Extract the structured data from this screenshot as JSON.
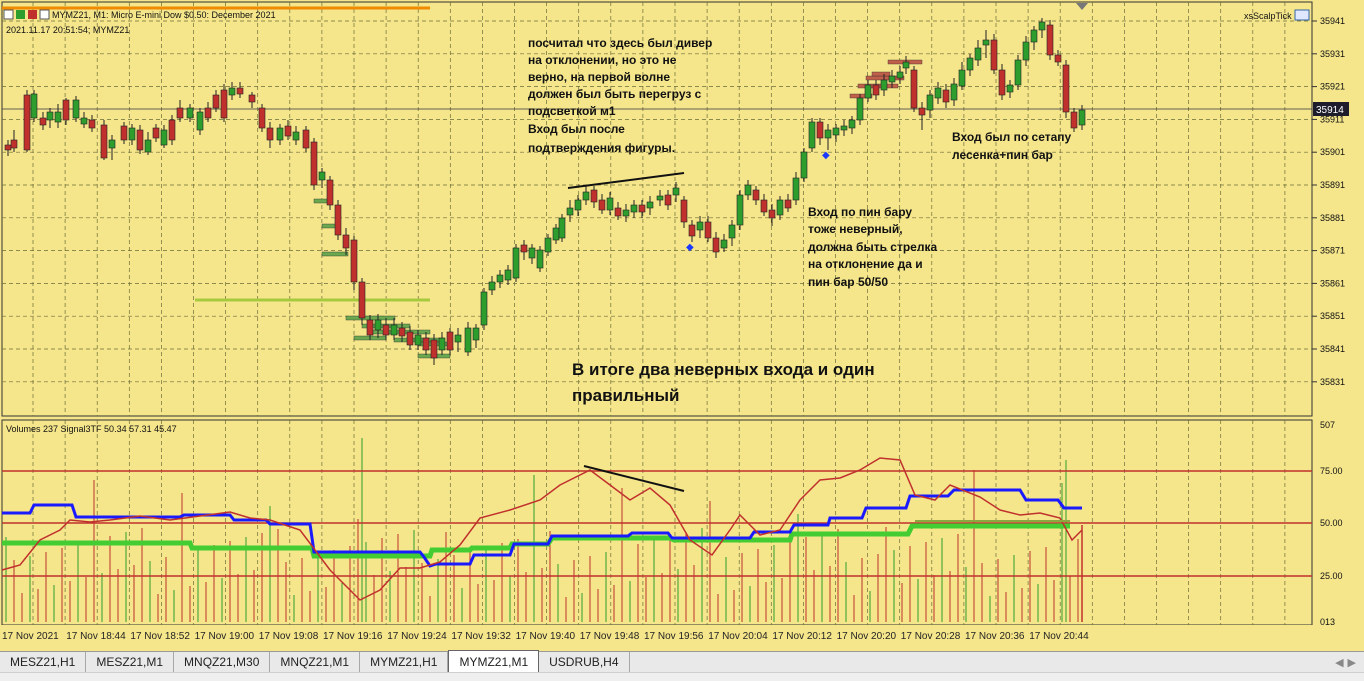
{
  "chart_header": {
    "symbol_info": "MYMZ21, M1:  Micro E-mini Dow $0.50: December 2021",
    "datetime_symbol": "2021.11.17 20:51:54; MYMZ21",
    "indicator_label": "xsScalpTick",
    "last_price_tag": "35914"
  },
  "price_axis": [
    "35941",
    "35931",
    "35921",
    "35911",
    "35901",
    "35891",
    "35881",
    "35871",
    "35861",
    "35851",
    "35841",
    "35831"
  ],
  "indicator_header": "Volumes 237 Signal3TF 50.34 57.31 45.47",
  "indicator_axis": [
    "507",
    "75.00",
    "50.00",
    "25.00",
    "013"
  ],
  "time_axis": [
    "17 Nov 2021",
    "17 Nov 18:44",
    "17 Nov 18:52",
    "17 Nov 19:00",
    "17 Nov 19:08",
    "17 Nov 19:16",
    "17 Nov 19:24",
    "17 Nov 19:32",
    "17 Nov 19:40",
    "17 Nov 19:48",
    "17 Nov 19:56",
    "17 Nov 20:04",
    "17 Nov 20:12",
    "17 Nov 20:20",
    "17 Nov 20:28",
    "17 Nov 20:36",
    "17 Nov 20:44"
  ],
  "annotations": {
    "diver_note": [
      "посчитал что здесь был дивер",
      "на отклонении, но это не",
      "верно, на первой волне",
      "должен был быть перегруз  с",
      "подсветкой м1",
      "Вход был после",
      "подтверждения фигуры."
    ],
    "pinbar_note": [
      "Вход по пин бару",
      "тоже неверный,",
      "должна быть стрелка",
      "на отклонение да и",
      "пин бар 50/50"
    ],
    "ladder_note": [
      "Вход был по сетапу",
      "лесенка+пин бар"
    ],
    "summary": [
      "В итоге два неверных входа и один",
      "правильный"
    ]
  },
  "tabs": [
    {
      "label": "MESZ21,H1",
      "active": false
    },
    {
      "label": "MESZ21,M1",
      "active": false
    },
    {
      "label": "MNQZ21,M30",
      "active": false
    },
    {
      "label": "MNQZ21,M1",
      "active": false
    },
    {
      "label": "MYMZ21,H1",
      "active": false
    },
    {
      "label": "MYMZ21,M1",
      "active": true
    },
    {
      "label": "USDRUB,H4",
      "active": false
    }
  ],
  "colors": {
    "background": "#f5e68b",
    "bull_candle": "#2d9e2d",
    "bear_candle": "#c0302d",
    "grid": "#6b6b3a",
    "blue_line": "#1a1aff",
    "green_line": "#44cc33",
    "red_line": "#c0302d"
  }
}
